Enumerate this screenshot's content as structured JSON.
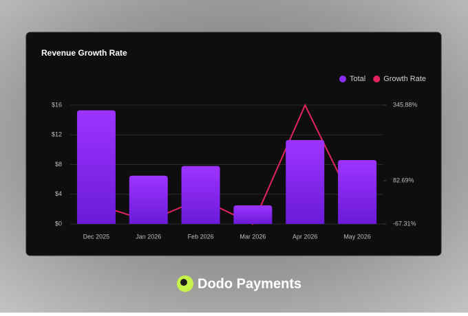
{
  "chart_data": {
    "type": "bar",
    "title": "Revenue Growth Rate",
    "categories": [
      "Dec 2025",
      "Jan 2026",
      "Feb 2026",
      "Mar 2026",
      "Apr 2026",
      "May 2026"
    ],
    "series": [
      {
        "name": "Total",
        "type": "bar",
        "color": "#8b2cf5",
        "values": [
          15.3,
          6.5,
          7.8,
          2.5,
          11.3,
          8.6
        ]
      },
      {
        "name": "Growth Rate",
        "type": "line",
        "axis": "y2",
        "color": "#e3245c",
        "values": [
          0,
          -57.5,
          20,
          -67.31,
          345.88,
          -24
        ]
      }
    ],
    "ylim": [
      0,
      16
    ],
    "yticks": [
      {
        "value": 0,
        "label": "$0"
      },
      {
        "value": 4,
        "label": "$4"
      },
      {
        "value": 8,
        "label": "$8"
      },
      {
        "value": 12,
        "label": "$12"
      },
      {
        "value": 16,
        "label": "$16"
      }
    ],
    "y2lim": [
      -67.31,
      345.88
    ],
    "y2ticks": [
      {
        "value": -67.31,
        "label": "-67.31%"
      },
      {
        "value": 82.69,
        "label": "82.69%"
      },
      {
        "value": 345.88,
        "label": "345.88%"
      }
    ],
    "grid": true,
    "legend": "top-right"
  },
  "footer": {
    "brand": "Dodo Payments"
  }
}
